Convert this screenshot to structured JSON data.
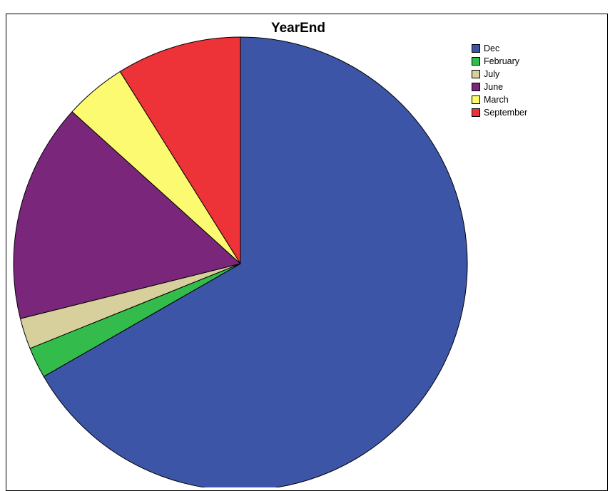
{
  "chart_data": {
    "type": "pie",
    "title": "YearEnd",
    "categories": [
      "Dec",
      "February",
      "July",
      "June",
      "March",
      "September"
    ],
    "values": [
      66.7,
      2.2,
      2.2,
      15.6,
      4.4,
      8.9
    ],
    "colors": [
      "#3c55a6",
      "#33bb4c",
      "#d7cf9c",
      "#7a277b",
      "#fbfa70",
      "#ee3338"
    ],
    "legend": {
      "position": "top-right",
      "entries": [
        "Dec",
        "February",
        "July",
        "June",
        "March",
        "September"
      ]
    },
    "start_angle_deg": 0,
    "direction": "clockwise"
  }
}
